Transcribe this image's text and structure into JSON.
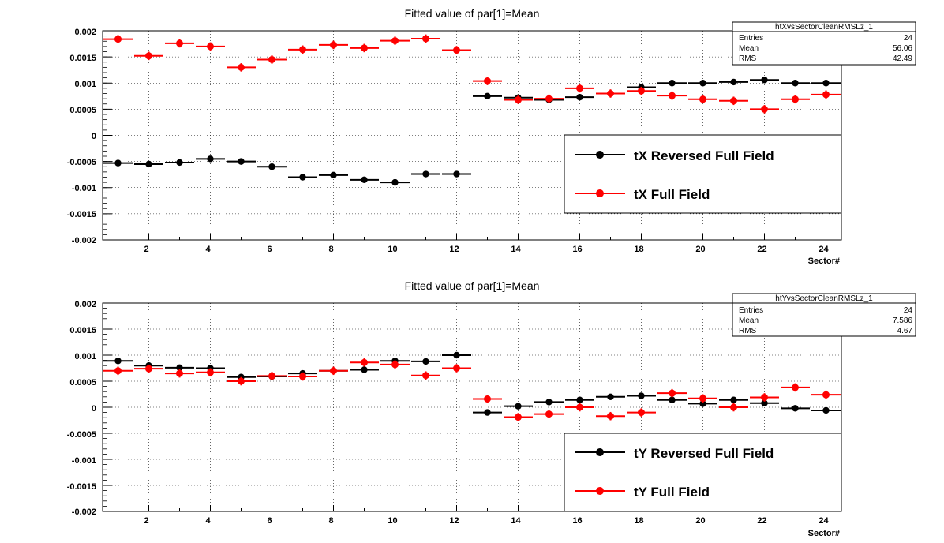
{
  "colors": {
    "black_series": "#000000",
    "red_series": "#ff0000",
    "grid": "#000000",
    "background": "#ffffff"
  },
  "panels": [
    {
      "title": "Fitted value of par[1]=Mean",
      "xlabel": "Sector#",
      "stats": {
        "name": "htXvsSectorCleanRMSLz_1",
        "rows": [
          {
            "label": "Entries",
            "value": "24"
          },
          {
            "label": "Mean",
            "value": "56.06"
          },
          {
            "label": "RMS",
            "value": "42.49"
          }
        ]
      },
      "legend": [
        "tX Reversed Full Field",
        "tX Full Field"
      ],
      "yticks": [
        "0.002",
        "0.0015",
        "0.001",
        "0.0005",
        "0",
        "-0.0005",
        "-0.001",
        "-0.0015",
        "-0.002"
      ],
      "xticks": [
        "2",
        "4",
        "6",
        "8",
        "10",
        "12",
        "14",
        "16",
        "18",
        "20",
        "22",
        "24"
      ]
    },
    {
      "title": "Fitted value of par[1]=Mean",
      "xlabel": "Sector#",
      "stats": {
        "name": "htYvsSectorCleanRMSLz_1",
        "rows": [
          {
            "label": "Entries",
            "value": "24"
          },
          {
            "label": "Mean",
            "value": "7.586"
          },
          {
            "label": "RMS",
            "value": "4.67"
          }
        ]
      },
      "legend": [
        "tY Reversed Full Field",
        "tY Full Field"
      ],
      "yticks": [
        "0.002",
        "0.0015",
        "0.001",
        "0.0005",
        "0",
        "-0.0005",
        "-0.001",
        "-0.0015",
        "-0.002"
      ],
      "xticks": [
        "2",
        "4",
        "6",
        "8",
        "10",
        "12",
        "14",
        "16",
        "18",
        "20",
        "22",
        "24"
      ]
    }
  ],
  "chart_data": [
    {
      "type": "scatter",
      "title": "Fitted value of par[1]=Mean",
      "xlabel": "Sector#",
      "ylabel": "",
      "xlim": [
        0.5,
        24.5
      ],
      "ylim": [
        -0.002,
        0.002
      ],
      "grid": true,
      "legend_position": "right",
      "x": [
        1,
        2,
        3,
        4,
        5,
        6,
        7,
        8,
        9,
        10,
        11,
        12,
        13,
        14,
        15,
        16,
        17,
        18,
        19,
        20,
        21,
        22,
        23,
        24
      ],
      "series": [
        {
          "name": "tX Reversed Full Field",
          "color": "#000000",
          "values": [
            -0.00053,
            -0.00055,
            -0.00052,
            -0.00045,
            -0.0005,
            -0.0006,
            -0.0008,
            -0.00076,
            -0.00085,
            -0.0009,
            -0.00074,
            -0.00074,
            0.00075,
            0.00072,
            0.00068,
            0.00073,
            0.0008,
            0.00092,
            0.001,
            0.001,
            0.00102,
            0.00106,
            0.001,
            0.001
          ],
          "errors": [
            3e-05,
            3e-05,
            3e-05,
            3e-05,
            3e-05,
            3e-05,
            3e-05,
            3e-05,
            3e-05,
            3e-05,
            3e-05,
            3e-05,
            3e-05,
            3e-05,
            3e-05,
            3e-05,
            3e-05,
            3e-05,
            3e-05,
            3e-05,
            3e-05,
            3e-05,
            3e-05,
            3e-05
          ]
        },
        {
          "name": "tX Full Field",
          "color": "#ff0000",
          "values": [
            0.00184,
            0.00152,
            0.00176,
            0.0017,
            0.0013,
            0.00145,
            0.00164,
            0.00173,
            0.00167,
            0.00181,
            0.00185,
            0.00163,
            0.00104,
            0.00068,
            0.0007,
            0.0009,
            0.0008,
            0.00085,
            0.00076,
            0.00069,
            0.00066,
            0.0005,
            0.00069,
            0.00078
          ],
          "errors": [
            8e-05,
            8e-05,
            8e-05,
            8e-05,
            8e-05,
            8e-05,
            8e-05,
            8e-05,
            8e-05,
            8e-05,
            8e-05,
            8e-05,
            8e-05,
            8e-05,
            8e-05,
            8e-05,
            8e-05,
            8e-05,
            8e-05,
            8e-05,
            8e-05,
            8e-05,
            8e-05,
            8e-05
          ]
        }
      ]
    },
    {
      "type": "scatter",
      "title": "Fitted value of par[1]=Mean",
      "xlabel": "Sector#",
      "ylabel": "",
      "xlim": [
        0.5,
        24.5
      ],
      "ylim": [
        -0.002,
        0.002
      ],
      "grid": true,
      "legend_position": "right",
      "x": [
        1,
        2,
        3,
        4,
        5,
        6,
        7,
        8,
        9,
        10,
        11,
        12,
        13,
        14,
        15,
        16,
        17,
        18,
        19,
        20,
        21,
        22,
        23,
        24
      ],
      "series": [
        {
          "name": "tY Reversed Full Field",
          "color": "#000000",
          "values": [
            0.00089,
            0.0008,
            0.00076,
            0.00075,
            0.00058,
            0.00059,
            0.00065,
            0.0007,
            0.00072,
            0.00089,
            0.00088,
            0.001,
            -0.0001,
            2e-05,
            0.0001,
            0.00014,
            0.0002,
            0.00022,
            0.00014,
            7e-05,
            0.00014,
            8e-05,
            -2e-05,
            -6e-05
          ],
          "errors": [
            3e-05,
            3e-05,
            3e-05,
            3e-05,
            3e-05,
            3e-05,
            3e-05,
            3e-05,
            3e-05,
            3e-05,
            3e-05,
            3e-05,
            3e-05,
            3e-05,
            3e-05,
            3e-05,
            3e-05,
            3e-05,
            3e-05,
            3e-05,
            3e-05,
            3e-05,
            3e-05,
            3e-05
          ]
        },
        {
          "name": "tY Full Field",
          "color": "#ff0000",
          "values": [
            0.0007,
            0.00074,
            0.00065,
            0.00067,
            0.0005,
            0.0006,
            0.00059,
            0.0007,
            0.00086,
            0.00082,
            0.00061,
            0.00075,
            0.00016,
            -0.00019,
            -0.00013,
            0.0,
            -0.00017,
            -0.0001,
            0.00027,
            0.00017,
            0.0,
            0.00019,
            0.00038,
            0.00024
          ],
          "errors": [
            8e-05,
            8e-05,
            8e-05,
            8e-05,
            8e-05,
            8e-05,
            8e-05,
            8e-05,
            8e-05,
            8e-05,
            8e-05,
            8e-05,
            8e-05,
            8e-05,
            8e-05,
            8e-05,
            8e-05,
            8e-05,
            8e-05,
            8e-05,
            8e-05,
            8e-05,
            8e-05,
            8e-05
          ]
        }
      ]
    }
  ]
}
